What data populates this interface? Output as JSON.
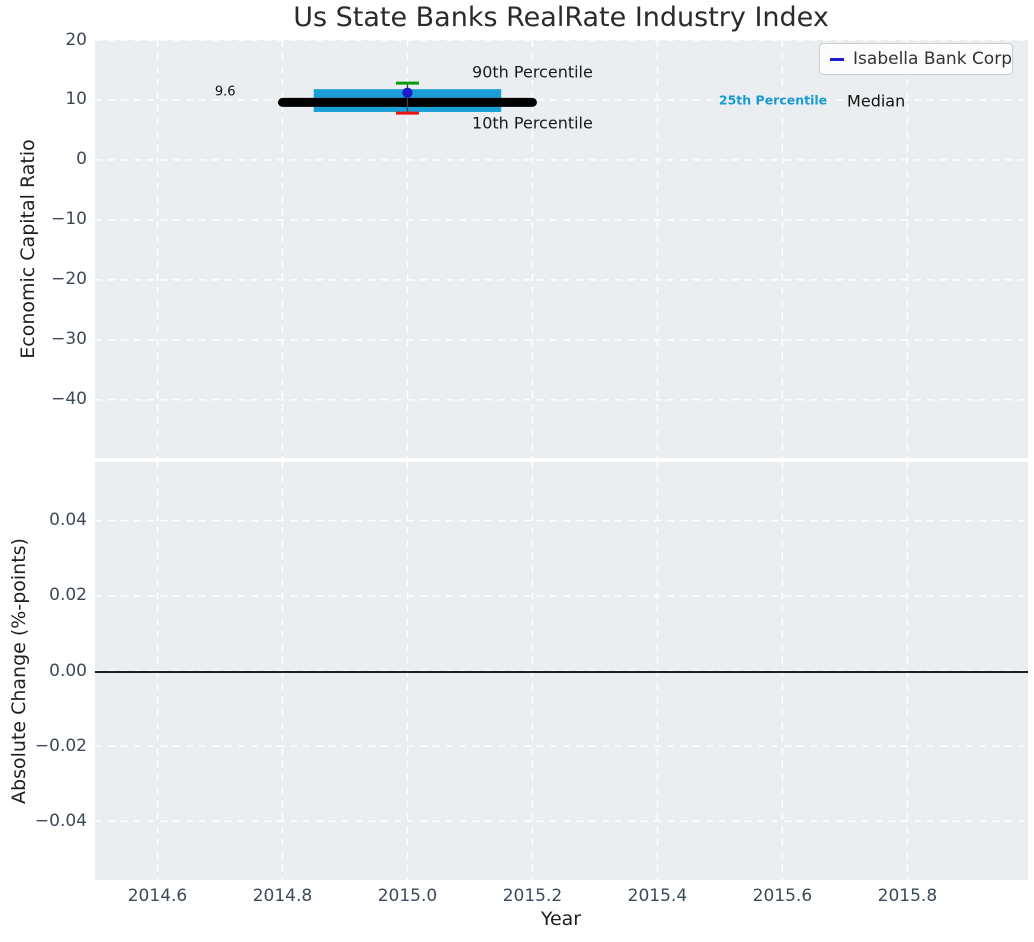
{
  "figure": {
    "title": "Us State Banks RealRate Industry Index"
  },
  "legend": {
    "position": "upper right",
    "items": [
      {
        "label": "Isabella Bank Corp",
        "color": "#1c1ccd"
      }
    ]
  },
  "style": {
    "plot_bg": "#ebeef0",
    "grid_color": "#ffffff",
    "tick_color": "#3e4a59",
    "label_color": "#1f1f1f",
    "title_color": "#2b2b2b",
    "zero_line_color": "#000000"
  },
  "chart_data": [
    {
      "type": "scatter",
      "panel": "economic-capital-ratio",
      "title": "Us State Banks RealRate Industry Index",
      "ylabel": "Economic Capital Ratio",
      "xlim": [
        2014.5,
        2015.993
      ],
      "ylim": [
        -49.7,
        20
      ],
      "grid": true,
      "yticks": [
        {
          "v": 20,
          "label": "20"
        },
        {
          "v": 10,
          "label": "10"
        },
        {
          "v": 0,
          "label": "0"
        },
        {
          "v": -10,
          "label": "−10"
        },
        {
          "v": -20,
          "label": "−20"
        },
        {
          "v": -30,
          "label": "−30"
        },
        {
          "v": -40,
          "label": "−40"
        }
      ],
      "industry_summary": {
        "x_center": 2015.0,
        "median": {
          "value": 9.6,
          "x_start": 2014.8,
          "x_end": 2015.2,
          "color": "#000000"
        },
        "iqr_band": {
          "p25": 8.0,
          "p75": 11.8,
          "x_start": 2014.85,
          "x_end": 2015.15,
          "color": "#1a9fd6"
        },
        "p90": {
          "value": 12.8,
          "color": "#0a9a0a"
        },
        "p10": {
          "value": 7.8,
          "color": "#ee1414"
        },
        "whisker_color": "#444444"
      },
      "company_point": {
        "name": "Isabella Bank Corp",
        "x": 2015.0,
        "value": 11.2,
        "color": "#1c1ccd"
      },
      "annotations": [
        {
          "id": "median-value",
          "text": "9.6",
          "x": 2014.725,
          "y": 11.4,
          "ha": "right",
          "size": 13,
          "weight": "normal",
          "color": "#111111"
        },
        {
          "id": "p90-label",
          "text": "90th Percentile",
          "x": 2015.2,
          "y": 14.7,
          "ha": "center",
          "size": 16,
          "weight": "normal",
          "color": "#1a1a1a"
        },
        {
          "id": "p10-label",
          "text": "10th Percentile",
          "x": 2015.2,
          "y": 6.2,
          "ha": "center",
          "size": 16,
          "weight": "normal",
          "color": "#1a1a1a"
        },
        {
          "id": "p25-label",
          "text": "25th Percentile",
          "x": 2015.585,
          "y": 10.0,
          "ha": "center",
          "size": 12.5,
          "weight": "bold",
          "color": "#189ace"
        },
        {
          "id": "median-label",
          "text": "Median",
          "x": 2015.75,
          "y": 9.85,
          "ha": "center",
          "size": 16,
          "weight": "normal",
          "color": "#111111"
        }
      ]
    },
    {
      "type": "line",
      "panel": "absolute-change",
      "ylabel": "Absolute Change (%-points)",
      "xlabel": "Year",
      "xlim": [
        2014.5,
        2015.993
      ],
      "ylim": [
        -0.0556,
        0.0556
      ],
      "grid": true,
      "zero_line": 0.0,
      "yticks": [
        {
          "v": 0.04,
          "label": "0.04"
        },
        {
          "v": 0.02,
          "label": "0.02"
        },
        {
          "v": 0,
          "label": "0.00"
        },
        {
          "v": -0.02,
          "label": "−0.02"
        },
        {
          "v": -0.04,
          "label": "−0.04"
        }
      ],
      "xticks": [
        {
          "v": 2014.6,
          "label": "2014.6"
        },
        {
          "v": 2014.8,
          "label": "2014.8"
        },
        {
          "v": 2015.0,
          "label": "2015.0"
        },
        {
          "v": 2015.2,
          "label": "2015.2"
        },
        {
          "v": 2015.4,
          "label": "2015.4"
        },
        {
          "v": 2015.6,
          "label": "2015.6"
        },
        {
          "v": 2015.8,
          "label": "2015.8"
        }
      ],
      "series": []
    }
  ]
}
